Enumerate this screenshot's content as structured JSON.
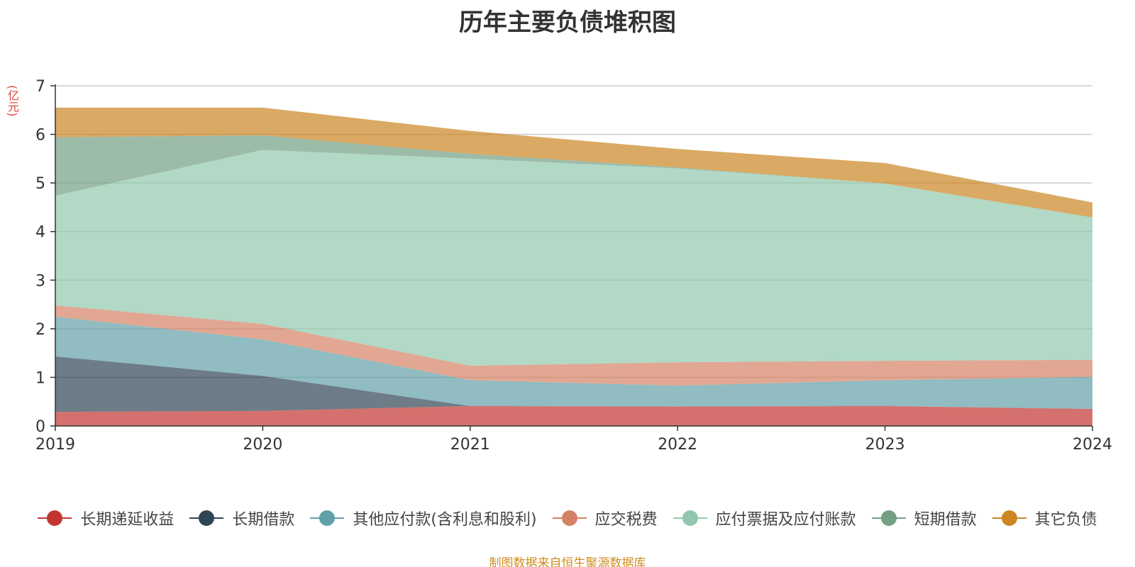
{
  "chart_data": {
    "type": "area",
    "stacked": true,
    "title": "历年主要负债堆积图",
    "ylabel": "(亿元)",
    "xlabel": "",
    "categories": [
      "2019",
      "2020",
      "2021",
      "2022",
      "2023",
      "2024"
    ],
    "ylim": [
      0,
      7
    ],
    "yticks": [
      0,
      1,
      2,
      3,
      4,
      5,
      6,
      7
    ],
    "grid": true,
    "legend_position": "bottom",
    "series": [
      {
        "name": "长期递延收益",
        "color": "#c23531",
        "values": [
          0.29,
          0.31,
          0.41,
          0.4,
          0.41,
          0.35
        ]
      },
      {
        "name": "长期借款",
        "color": "#2f4554",
        "values": [
          1.14,
          0.72,
          0.0,
          0.0,
          0.0,
          0.0
        ]
      },
      {
        "name": "其他应付款(含利息和股利)",
        "color": "#61a0a8",
        "values": [
          0.82,
          0.75,
          0.53,
          0.43,
          0.53,
          0.66
        ]
      },
      {
        "name": "应交税费",
        "color": "#d48265",
        "values": [
          0.23,
          0.32,
          0.3,
          0.48,
          0.4,
          0.35
        ]
      },
      {
        "name": "应付票据及应付账款",
        "color": "#91c7ae",
        "values": [
          2.26,
          3.58,
          4.26,
          3.99,
          3.65,
          2.93
        ]
      },
      {
        "name": "短期借款",
        "color": "#749f83",
        "values": [
          1.2,
          0.3,
          0.1,
          0.02,
          0.0,
          0.0
        ]
      },
      {
        "name": "其它负债",
        "color": "#ca8622",
        "values": [
          0.61,
          0.57,
          0.47,
          0.38,
          0.42,
          0.31
        ]
      }
    ]
  },
  "source_text": "制图数据来自恒生聚源数据库"
}
